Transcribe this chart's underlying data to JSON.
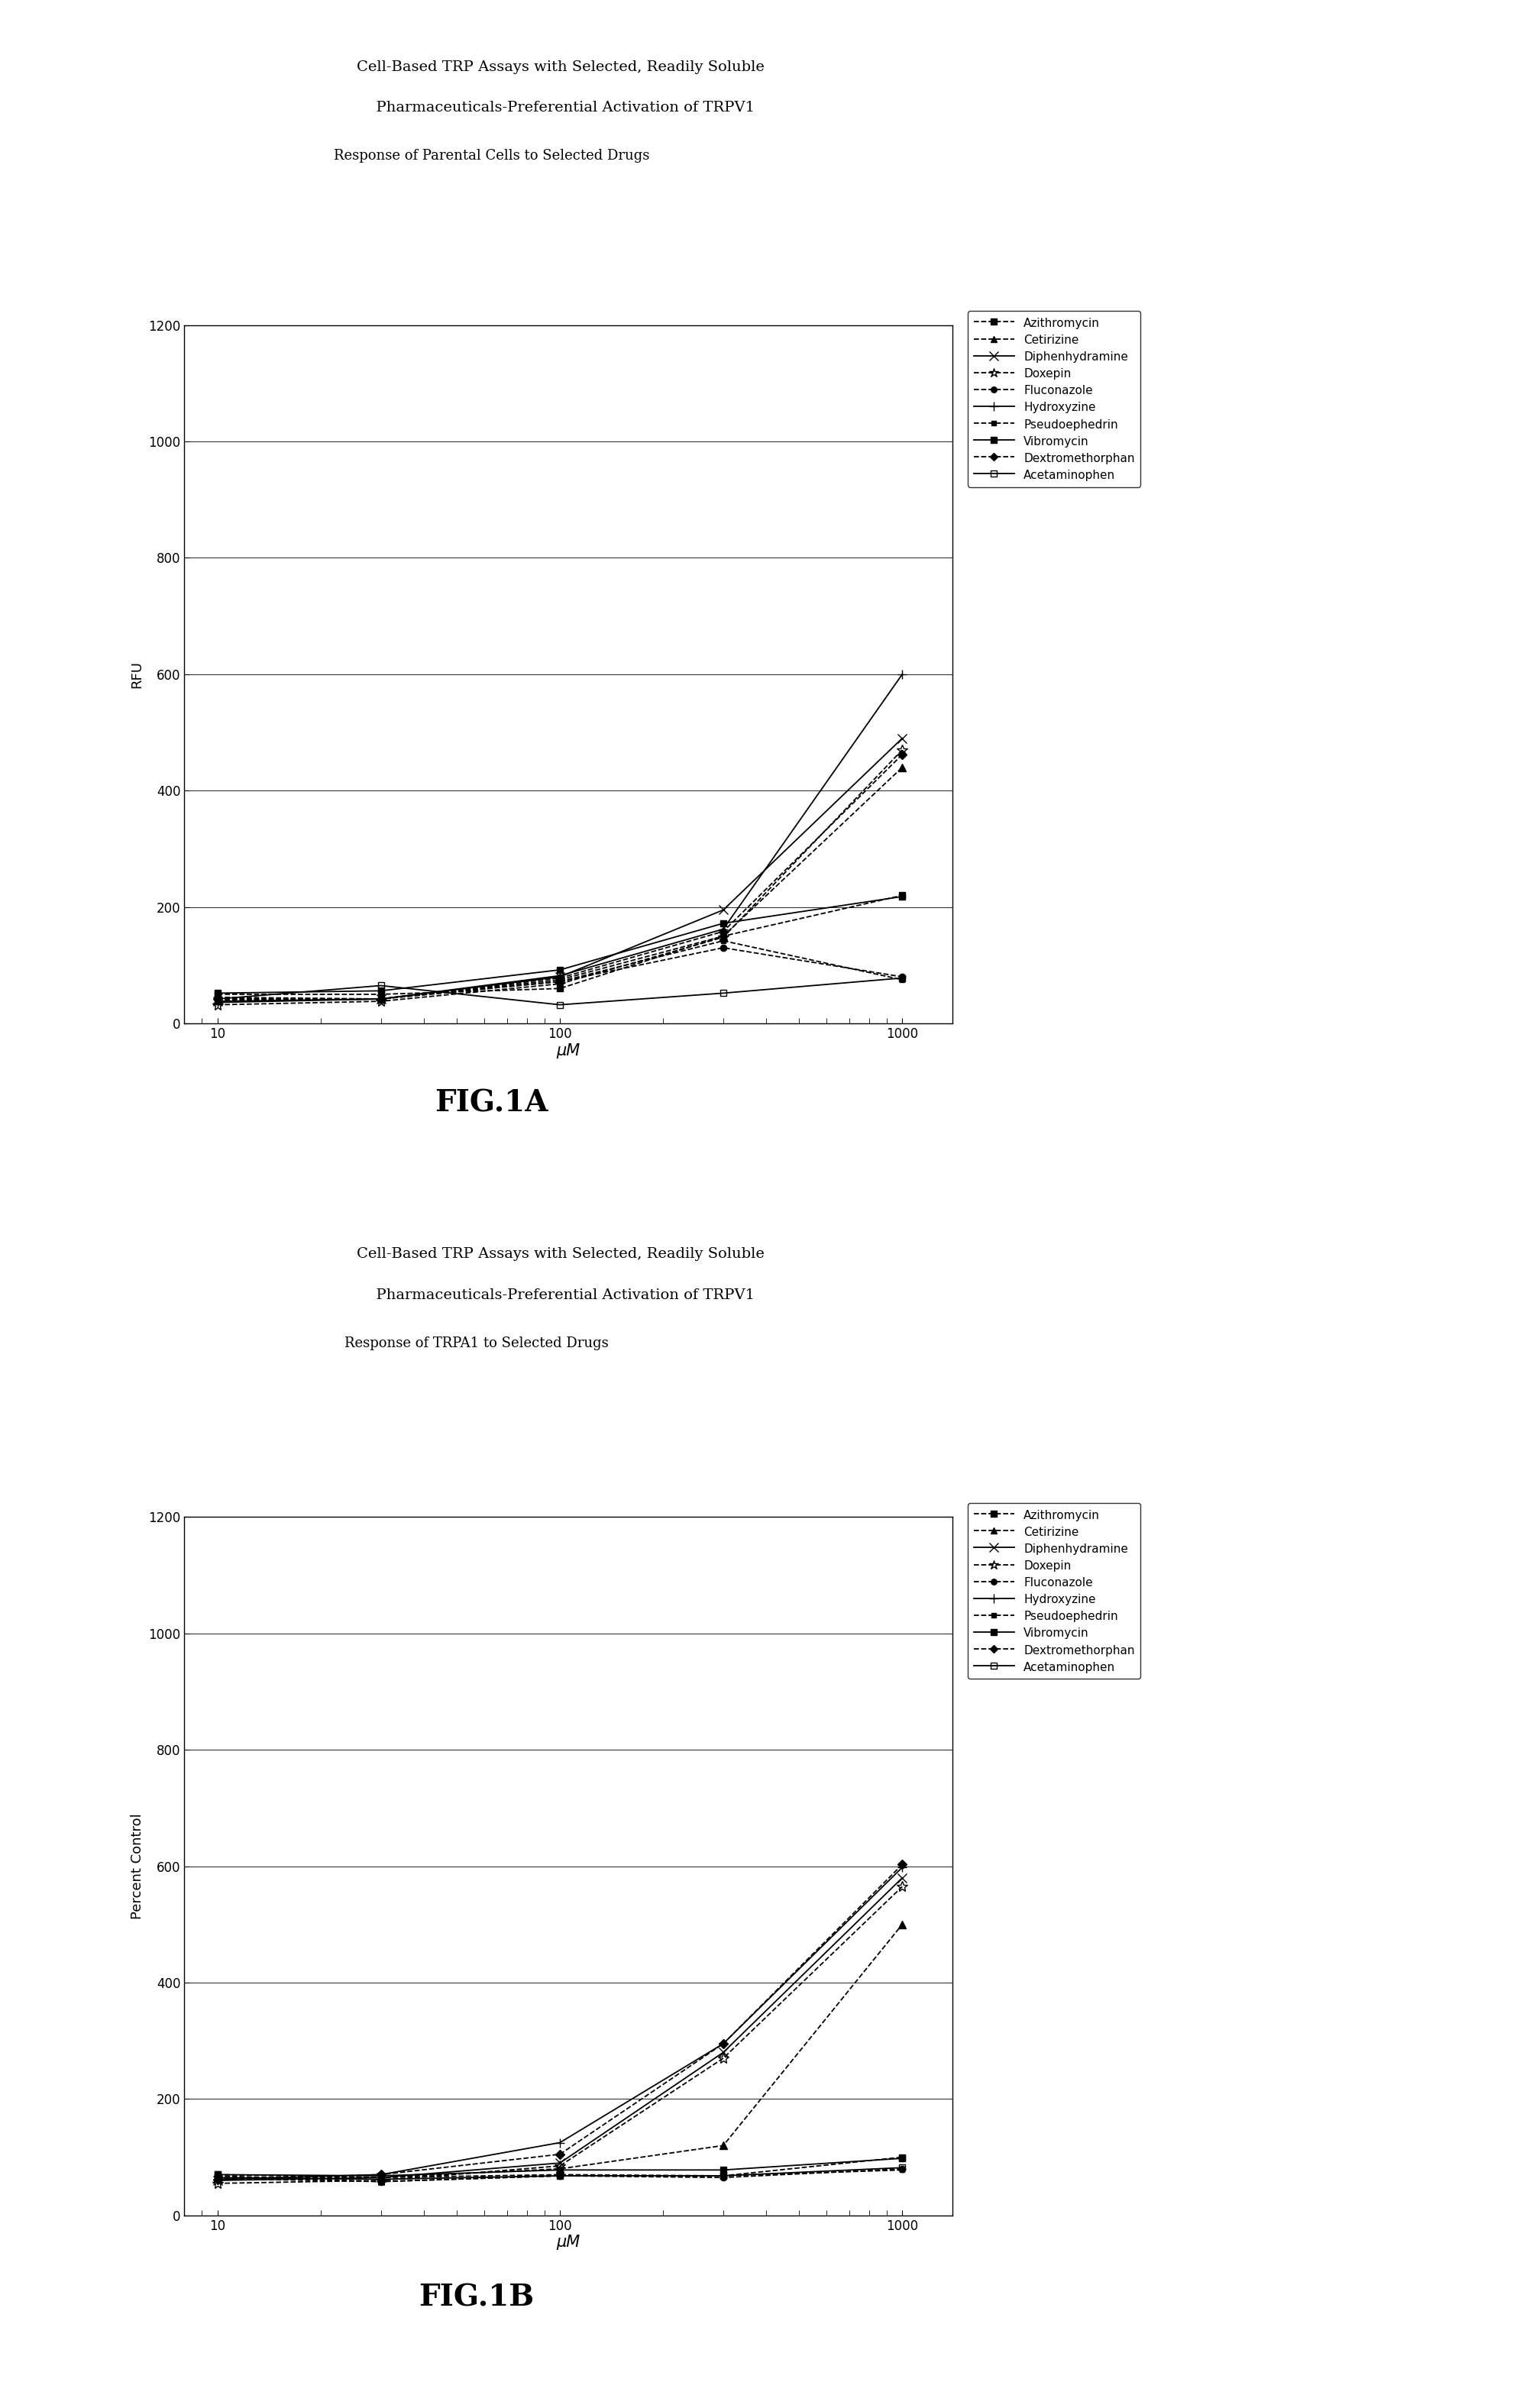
{
  "fig_title_1a": "Cell-Based TRP Assays with Selected, Readily Soluble",
  "fig_title_1b": "  Pharmaceuticals-Preferential Activation of TRPV1",
  "subplot_title_1": "Response of Parental Cells to Selected Drugs",
  "ylabel_1": "RFU",
  "fig_label_1": "FIG.1A",
  "fig_title_2a": "Cell-Based TRP Assays with Selected, Readily Soluble",
  "fig_title_2b": "  Pharmaceuticals-Preferential Activation of TRPV1",
  "subplot_title_2": "Response of TRPA1 to Selected Drugs",
  "ylabel_2": "Percent Control",
  "fig_label_2": "FIG.1B",
  "xlabel": "μM",
  "x_values": [
    10,
    30,
    100,
    300,
    1000
  ],
  "ylim": [
    0,
    1200
  ],
  "yticks": [
    0,
    200,
    400,
    600,
    800,
    1000,
    1200
  ],
  "series": [
    {
      "name": "Azithromycin",
      "ls": "--",
      "marker": "s",
      "mfc": "black",
      "ms": 6,
      "data_1a": [
        50,
        50,
        60,
        150,
        220
      ],
      "data_1b": [
        70,
        65,
        70,
        68,
        100
      ]
    },
    {
      "name": "Cetirizine",
      "ls": "--",
      "marker": "^",
      "mfc": "black",
      "ms": 7,
      "data_1a": [
        40,
        42,
        75,
        150,
        440
      ],
      "data_1b": [
        65,
        65,
        80,
        120,
        500
      ]
    },
    {
      "name": "Diphenhydramine",
      "ls": "-",
      "marker": "x",
      "mfc": "none",
      "ms": 9,
      "data_1a": [
        38,
        42,
        80,
        195,
        490
      ],
      "data_1b": [
        60,
        65,
        90,
        280,
        580
      ]
    },
    {
      "name": "Doxepin",
      "ls": "--",
      "marker": "*",
      "mfc": "none",
      "ms": 10,
      "data_1a": [
        32,
        38,
        68,
        148,
        470
      ],
      "data_1b": [
        55,
        60,
        85,
        270,
        565
      ]
    },
    {
      "name": "Fluconazole",
      "ls": "--",
      "marker": "o",
      "mfc": "black",
      "ms": 6,
      "data_1a": [
        45,
        42,
        72,
        130,
        80
      ],
      "data_1b": [
        68,
        58,
        68,
        65,
        80
      ]
    },
    {
      "name": "Hydroxyzine",
      "ls": "-",
      "marker": "+",
      "mfc": "none",
      "ms": 9,
      "data_1a": [
        36,
        42,
        82,
        162,
        600
      ],
      "data_1b": [
        62,
        70,
        125,
        295,
        598
      ]
    },
    {
      "name": "Pseudoephedrin",
      "ls": "--",
      "marker": "s",
      "mfc": "black",
      "ms": 5,
      "data_1a": [
        42,
        42,
        72,
        142,
        75
      ],
      "data_1b": [
        63,
        58,
        68,
        68,
        78
      ]
    },
    {
      "name": "Vibromycin",
      "ls": "-",
      "marker": "s",
      "mfc": "black",
      "ms": 6,
      "data_1a": [
        52,
        56,
        92,
        172,
        218
      ],
      "data_1b": [
        70,
        68,
        78,
        78,
        98
      ]
    },
    {
      "name": "Dextromethorphan",
      "ls": "--",
      "marker": "D",
      "mfc": "black",
      "ms": 6,
      "data_1a": [
        42,
        42,
        78,
        158,
        462
      ],
      "data_1b": [
        62,
        70,
        105,
        295,
        603
      ]
    },
    {
      "name": "Acetaminophen",
      "ls": "-",
      "marker": "s",
      "mfc": "none",
      "ms": 6,
      "data_1a": [
        42,
        65,
        32,
        52,
        78
      ],
      "data_1b": [
        65,
        62,
        68,
        68,
        82
      ]
    }
  ],
  "bg_color": "#ffffff",
  "title_fontsize": 14,
  "subtitle_fontsize": 13,
  "axis_label_fontsize": 13,
  "tick_fontsize": 12,
  "legend_fontsize": 11,
  "fig_label_fontsize": 28
}
